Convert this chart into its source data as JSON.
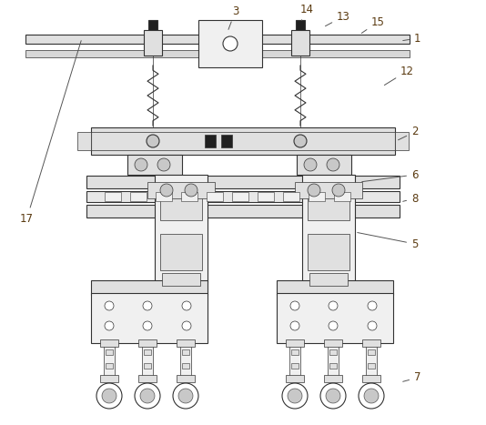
{
  "bg_color": "#ffffff",
  "line_color": "#333333",
  "label_color": "#5a3a10",
  "fig_width": 5.34,
  "fig_height": 4.67,
  "dpi": 100,
  "leader_color": "#555555",
  "fill_light": "#f0f0f0",
  "fill_mid": "#e0e0e0",
  "fill_dark": "#c8c8c8",
  "fill_very_dark": "#202020"
}
